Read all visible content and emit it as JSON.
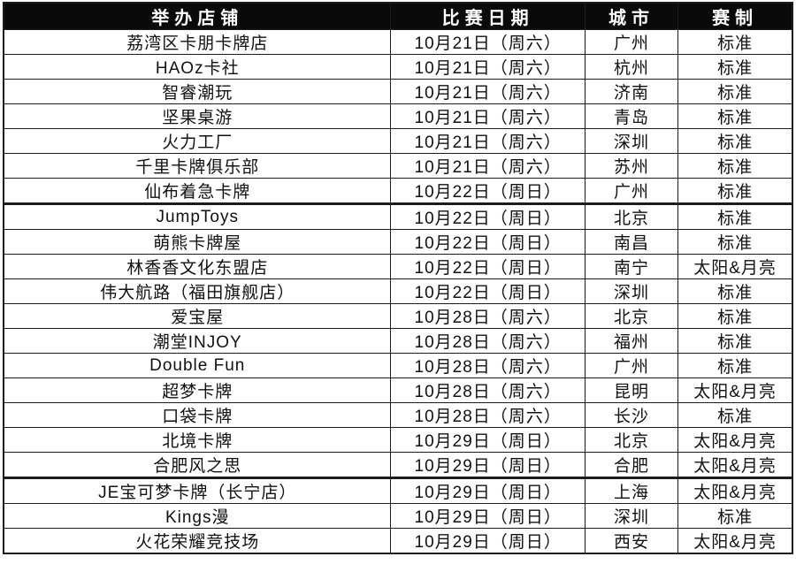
{
  "colors": {
    "header_bg": "#0a0a0a",
    "header_text": "#ffffff",
    "row_bg": "#ffffff",
    "row_text": "#101010",
    "grid_line": "#1c1c1c"
  },
  "table": {
    "headers": [
      "举办店铺",
      "比赛日期",
      "城市",
      "赛制"
    ],
    "rows": [
      [
        "荔湾区卡朋卡牌店",
        "10月21日（周六）",
        "广州",
        "标准"
      ],
      [
        "HAOz卡社",
        "10月21日（周六）",
        "杭州",
        "标准"
      ],
      [
        "智睿潮玩",
        "10月21日（周六）",
        "济南",
        "标准"
      ],
      [
        "坚果桌游",
        "10月21日（周六）",
        "青岛",
        "标准"
      ],
      [
        "火力工厂",
        "10月21日（周六）",
        "深圳",
        "标准"
      ],
      [
        "千里卡牌俱乐部",
        "10月21日（周六）",
        "苏州",
        "标准"
      ],
      [
        "仙布着急卡牌",
        "10月22日（周日）",
        "广州",
        "标准"
      ],
      [
        "JumpToys",
        "10月22日（周日）",
        "北京",
        "标准"
      ],
      [
        "萌熊卡牌屋",
        "10月22日（周日）",
        "南昌",
        "标准"
      ],
      [
        "林香香文化东盟店",
        "10月22日（周日）",
        "南宁",
        "太阳&月亮"
      ],
      [
        "伟大航路（福田旗舰店）",
        "10月22日（周日）",
        "深圳",
        "标准"
      ],
      [
        "爱宝屋",
        "10月28日（周六）",
        "北京",
        "标准"
      ],
      [
        "潮堂INJOY",
        "10月28日（周六）",
        "福州",
        "标准"
      ],
      [
        "Double Fun",
        "10月28日（周六）",
        "广州",
        "标准"
      ],
      [
        "超梦卡牌",
        "10月28日（周六）",
        "昆明",
        "太阳&月亮"
      ],
      [
        "口袋卡牌",
        "10月28日（周六）",
        "长沙",
        "标准"
      ],
      [
        "北境卡牌",
        "10月29日（周日）",
        "北京",
        "太阳&月亮"
      ],
      [
        "合肥风之思",
        "10月29日（周日）",
        "合肥",
        "太阳&月亮"
      ],
      [
        "JE宝可梦卡牌（长宁店）",
        "10月29日（周日）",
        "上海",
        "太阳&月亮"
      ],
      [
        "Kings漫",
        "10月29日（周日）",
        "深圳",
        "标准"
      ],
      [
        "火花荣耀竞技场",
        "10月29日（周日）",
        "西安",
        "太阳&月亮"
      ]
    ]
  }
}
